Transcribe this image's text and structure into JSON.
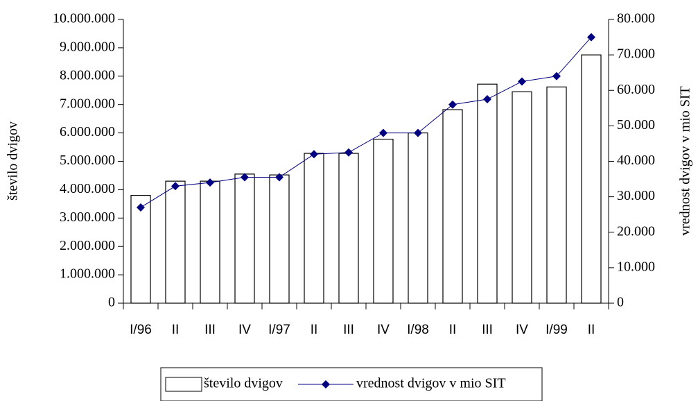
{
  "chart_data": {
    "type": "bar-line",
    "categories": [
      "I/96",
      "II",
      "III",
      "IV",
      "I/97",
      "II",
      "III",
      "IV",
      "I/98",
      "II",
      "III",
      "IV",
      "I/99",
      "II"
    ],
    "series": [
      {
        "name": "število dvigov",
        "type": "bar",
        "color": "#ffffff",
        "values": [
          3800000,
          4300000,
          4300000,
          4550000,
          4520000,
          5280000,
          5280000,
          5780000,
          6000000,
          6820000,
          7720000,
          7450000,
          7620000,
          8750000
        ]
      },
      {
        "name": "vrednost dvigov v mio SIT",
        "type": "line",
        "axis": "y2",
        "color": "#000080",
        "values": [
          27000,
          33000,
          34000,
          35500,
          35500,
          42000,
          42500,
          48000,
          48000,
          56000,
          57500,
          62500,
          64000,
          75000
        ]
      }
    ],
    "ylabel": "število dvigov",
    "y2label": "vrednost dvigov v mio SIT",
    "ylim": [
      0,
      10000000
    ],
    "yticks": [
      0,
      {
        "value": 1000000,
        "label": "1.000.000"
      },
      {
        "value": 2000000,
        "label": "2.000.000"
      },
      {
        "value": 3000000,
        "label": "3.000.000"
      },
      {
        "value": 4000000,
        "label": "4.000.000"
      },
      {
        "value": 5000000,
        "label": "5.000.000"
      },
      {
        "value": 6000000,
        "label": "6.000.000"
      },
      {
        "value": 7000000,
        "label": "7.000.000"
      },
      {
        "value": 8000000,
        "label": "8.000.000"
      },
      {
        "value": 9000000,
        "label": "9.000.000"
      },
      {
        "value": 10000000,
        "label": "10.000.000"
      }
    ],
    "y2lim": [
      0,
      80000
    ],
    "y2ticks": [
      0,
      {
        "value": 10000,
        "label": "10.000"
      },
      {
        "value": 20000,
        "label": "20.000"
      },
      {
        "value": 30000,
        "label": "30.000"
      },
      {
        "value": 40000,
        "label": "40.000"
      },
      {
        "value": 50000,
        "label": "50.000"
      },
      {
        "value": 60000,
        "label": "60.000"
      },
      {
        "value": 70000,
        "label": "70.000"
      },
      {
        "value": 80000,
        "label": "80.000"
      }
    ],
    "legend": "bottom"
  }
}
